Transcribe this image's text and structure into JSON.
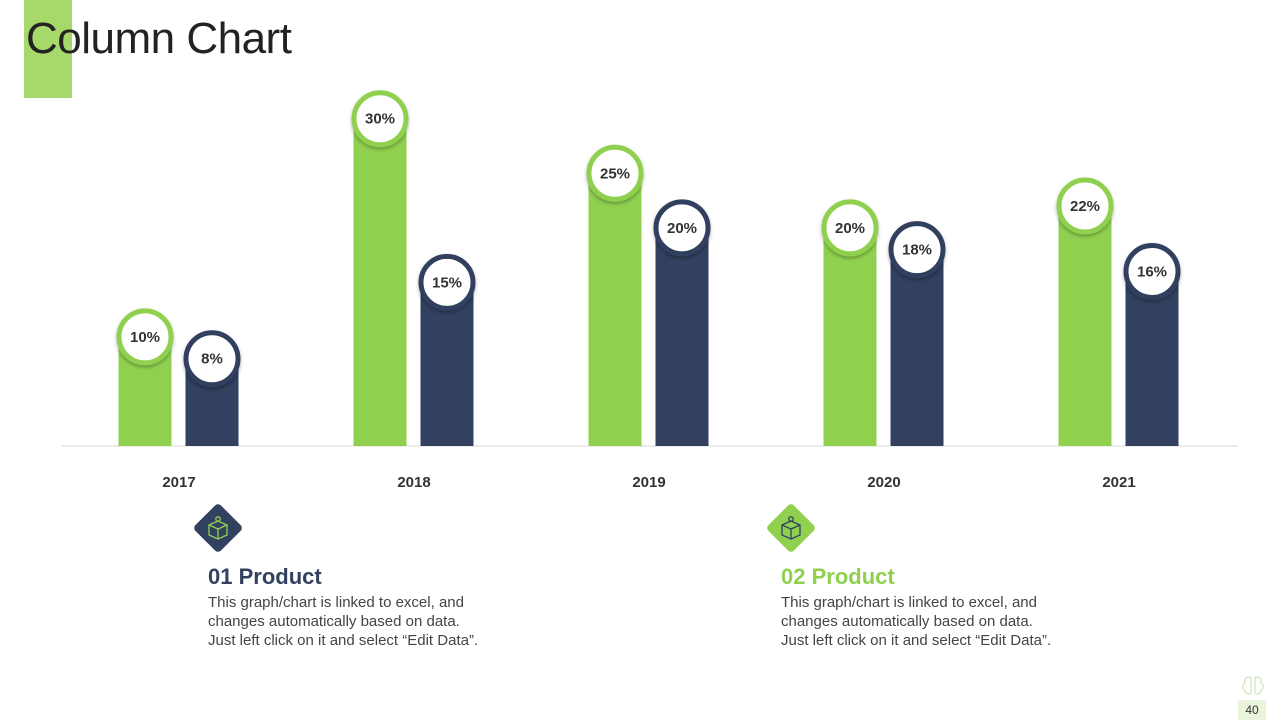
{
  "slide": {
    "title": "Column Chart",
    "page_number": "40"
  },
  "products": [
    {
      "heading": "01 Product",
      "description_lines": [
        "This graph/chart is linked to excel, and",
        "changes automatically based on data.",
        "Just left click on it and select “Edit Data”."
      ],
      "icon": "box-package-icon"
    },
    {
      "heading": "02 Product",
      "description_lines": [
        "This graph/chart is linked to excel, and",
        "changes automatically based on data.",
        "Just left click on it and select “Edit Data”."
      ],
      "icon": "box-package-icon"
    }
  ],
  "colors": {
    "product_01": "#324160",
    "product_02": "#8fd14f",
    "accent": "#a6d86a"
  },
  "chart_data": {
    "type": "bar",
    "categories": [
      "2017",
      "2018",
      "2019",
      "2020",
      "2021"
    ],
    "series": [
      {
        "values": [
          10,
          30,
          25,
          20,
          22
        ],
        "labels": [
          "10%",
          "30%",
          "25%",
          "20%",
          "22%"
        ],
        "color": "#8fd14f"
      },
      {
        "values": [
          8,
          15,
          20,
          18,
          16
        ],
        "labels": [
          "8%",
          "15%",
          "20%",
          "18%",
          "16%"
        ],
        "color": "#324160"
      }
    ],
    "ylim": [
      0,
      33
    ],
    "unit": "%",
    "grid": false,
    "legend": "none"
  }
}
